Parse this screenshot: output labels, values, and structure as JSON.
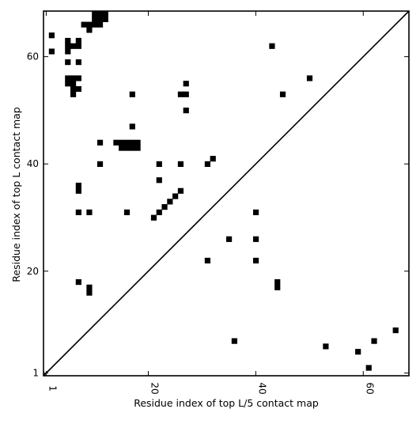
{
  "chart_data": {
    "type": "scatter",
    "title": "",
    "xlabel": "Residue index of top L/5 contact map",
    "ylabel": "Residue index of top L contact map",
    "xlim": [
      0.5,
      68.5
    ],
    "ylim": [
      0.5,
      68.5
    ],
    "xticks": [
      {
        "value": 1,
        "label": "1"
      },
      {
        "value": 20,
        "label": "20"
      },
      {
        "value": 40,
        "label": "40"
      },
      {
        "value": 60,
        "label": "60"
      }
    ],
    "yticks": [
      {
        "value": 1,
        "label": "1"
      },
      {
        "value": 20,
        "label": "20"
      },
      {
        "value": 40,
        "label": "40"
      },
      {
        "value": 60,
        "label": "60"
      }
    ],
    "diagonal": {
      "from": [
        0.5,
        0.5
      ],
      "to": [
        68.5,
        68.5
      ],
      "color": "#000000"
    },
    "grid": false,
    "marker_color": "#000000",
    "series": [
      {
        "region": "upper-left (top L)",
        "cells": [
          [
            8,
            66
          ],
          [
            9,
            66
          ],
          [
            10,
            66
          ],
          [
            11,
            66
          ],
          [
            10,
            67
          ],
          [
            11,
            67
          ],
          [
            12,
            67
          ],
          [
            10,
            68
          ],
          [
            11,
            68
          ],
          [
            12,
            68
          ],
          [
            9,
            65
          ],
          [
            2,
            64
          ],
          [
            5,
            63
          ],
          [
            7,
            63
          ],
          [
            5,
            62
          ],
          [
            6,
            62
          ],
          [
            7,
            62
          ],
          [
            43,
            62
          ],
          [
            2,
            61
          ],
          [
            5,
            61
          ],
          [
            5,
            59
          ],
          [
            7,
            59
          ],
          [
            5,
            56
          ],
          [
            6,
            56
          ],
          [
            7,
            56
          ],
          [
            5,
            55
          ],
          [
            6,
            55
          ],
          [
            50,
            56
          ],
          [
            6,
            54
          ],
          [
            7,
            54
          ],
          [
            6,
            53
          ],
          [
            17,
            53
          ],
          [
            26,
            53
          ],
          [
            27,
            53
          ],
          [
            45,
            53
          ],
          [
            27,
            55
          ],
          [
            27,
            50
          ],
          [
            17,
            47
          ],
          [
            11,
            44
          ],
          [
            14,
            44
          ],
          [
            15,
            44
          ],
          [
            16,
            44
          ],
          [
            17,
            44
          ],
          [
            18,
            44
          ],
          [
            15,
            43
          ],
          [
            16,
            43
          ],
          [
            17,
            43
          ],
          [
            18,
            43
          ],
          [
            11,
            40
          ],
          [
            22,
            40
          ],
          [
            26,
            40
          ],
          [
            31,
            40
          ],
          [
            32,
            41
          ],
          [
            22,
            37
          ],
          [
            7,
            36
          ],
          [
            7,
            35
          ],
          [
            26,
            35
          ],
          [
            25,
            34
          ],
          [
            24,
            33
          ],
          [
            23,
            32
          ],
          [
            7,
            31
          ],
          [
            9,
            31
          ],
          [
            16,
            31
          ],
          [
            22,
            31
          ],
          [
            40,
            31
          ],
          [
            21,
            30
          ],
          [
            35,
            26
          ],
          [
            40,
            26
          ],
          [
            31,
            22
          ],
          [
            40,
            22
          ],
          [
            7,
            18
          ],
          [
            44,
            18
          ],
          [
            9,
            17
          ],
          [
            44,
            17
          ],
          [
            9,
            16
          ]
        ]
      },
      {
        "region": "lower-right (top L/5)",
        "cells": [
          [
            66,
            9
          ],
          [
            62,
            7
          ],
          [
            36,
            7
          ],
          [
            53,
            6
          ],
          [
            59,
            5
          ],
          [
            61,
            2
          ]
        ]
      }
    ]
  }
}
